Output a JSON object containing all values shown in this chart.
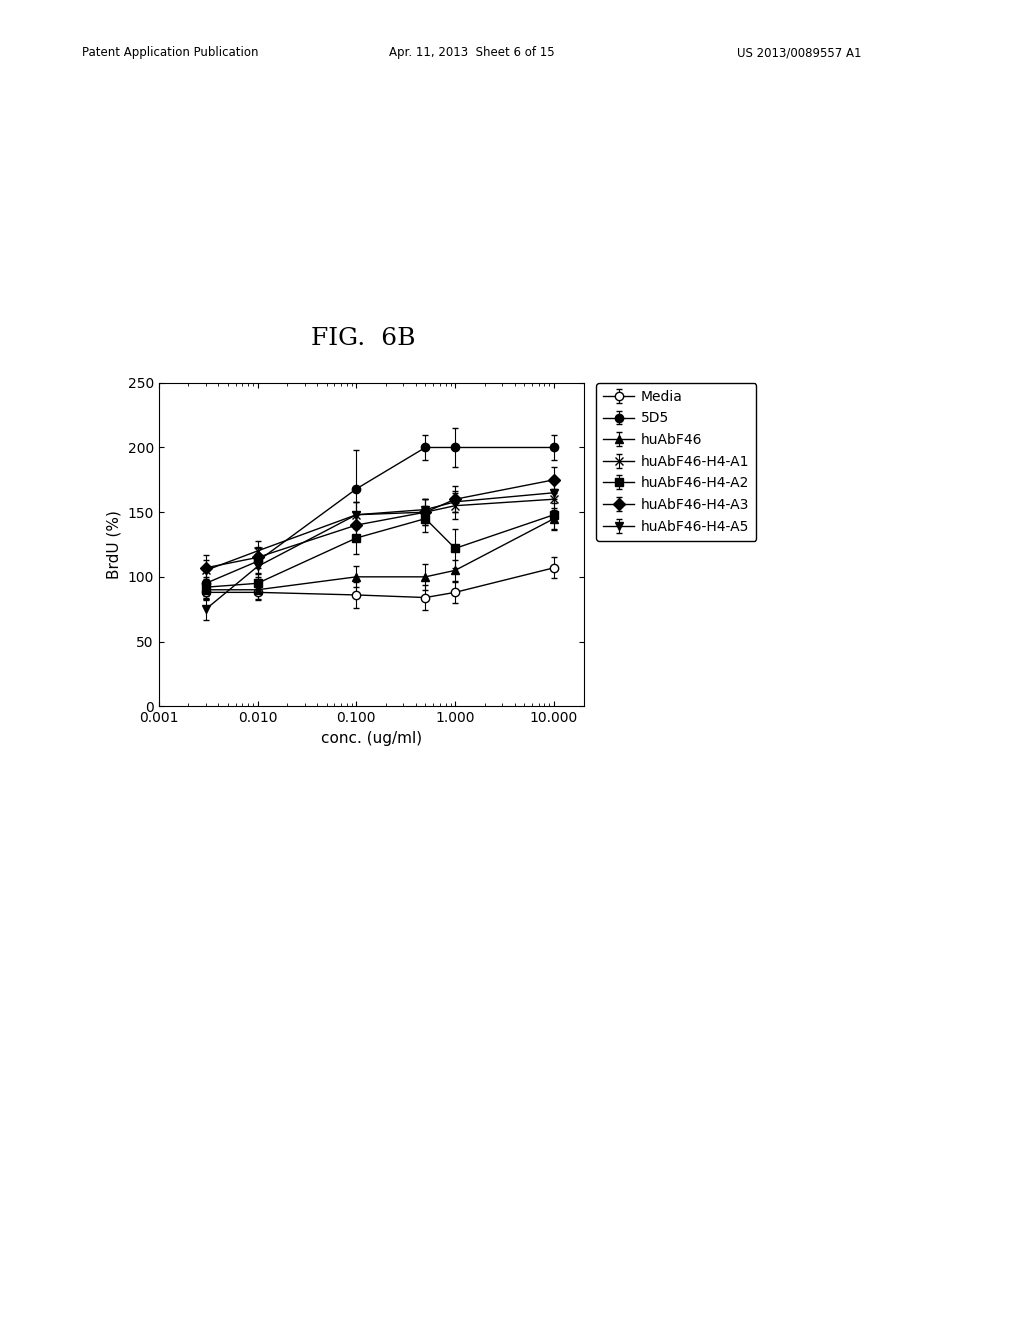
{
  "title": "FIG.  6B",
  "xlabel": "conc. (ug/ml)",
  "ylabel": "BrdU (%)",
  "xvalues": [
    0.003,
    0.01,
    0.1,
    0.5,
    1.0,
    10.0
  ],
  "series": {
    "Media": {
      "y": [
        88,
        88,
        86,
        84,
        88,
        107
      ],
      "yerr": [
        5,
        5,
        10,
        10,
        8,
        8
      ],
      "marker": "o",
      "fillstyle": "none"
    },
    "5D5": {
      "y": [
        95,
        112,
        168,
        200,
        200,
        200
      ],
      "yerr": [
        10,
        10,
        30,
        10,
        15,
        10
      ],
      "marker": "o",
      "fillstyle": "full"
    },
    "huAbF46": {
      "y": [
        90,
        90,
        100,
        100,
        105,
        145
      ],
      "yerr": [
        8,
        8,
        8,
        10,
        8,
        8
      ],
      "marker": "^",
      "fillstyle": "full"
    },
    "huAbF46-H4-A1": {
      "y": [
        105,
        120,
        148,
        150,
        155,
        160
      ],
      "yerr": [
        8,
        8,
        10,
        10,
        10,
        8
      ],
      "marker": "x",
      "fillstyle": "full"
    },
    "huAbF46-H4-A2": {
      "y": [
        92,
        95,
        130,
        145,
        122,
        148
      ],
      "yerr": [
        8,
        8,
        12,
        10,
        15,
        12
      ],
      "marker": "s",
      "fillstyle": "full"
    },
    "huAbF46-H4-A3": {
      "y": [
        107,
        115,
        140,
        150,
        160,
        175
      ],
      "yerr": [
        10,
        8,
        8,
        10,
        10,
        10
      ],
      "marker": "D",
      "fillstyle": "full"
    },
    "huAbF46-H4-A5": {
      "y": [
        75,
        108,
        148,
        152,
        158,
        165
      ],
      "yerr": [
        8,
        8,
        10,
        8,
        8,
        8
      ],
      "marker": "v",
      "fillstyle": "full"
    }
  },
  "series_order": [
    "Media",
    "5D5",
    "huAbF46",
    "huAbF46-H4-A1",
    "huAbF46-H4-A2",
    "huAbF46-H4-A3",
    "huAbF46-H4-A5"
  ],
  "ylim": [
    0,
    250
  ],
  "yticks": [
    0,
    50,
    100,
    150,
    200,
    250
  ],
  "xticks": [
    0.001,
    0.01,
    0.1,
    1.0,
    10.0
  ],
  "xticklabels": [
    "0.001",
    "0.010",
    "0.100",
    "1.000",
    "10.000"
  ],
  "xlim": [
    0.001,
    20
  ],
  "background_color": "#ffffff",
  "title_fontsize": 18,
  "axis_fontsize": 11,
  "tick_fontsize": 10,
  "legend_fontsize": 10,
  "header_left": "Patent Application Publication",
  "header_mid": "Apr. 11, 2013  Sheet 6 of 15",
  "header_right": "US 2013/0089557 A1"
}
